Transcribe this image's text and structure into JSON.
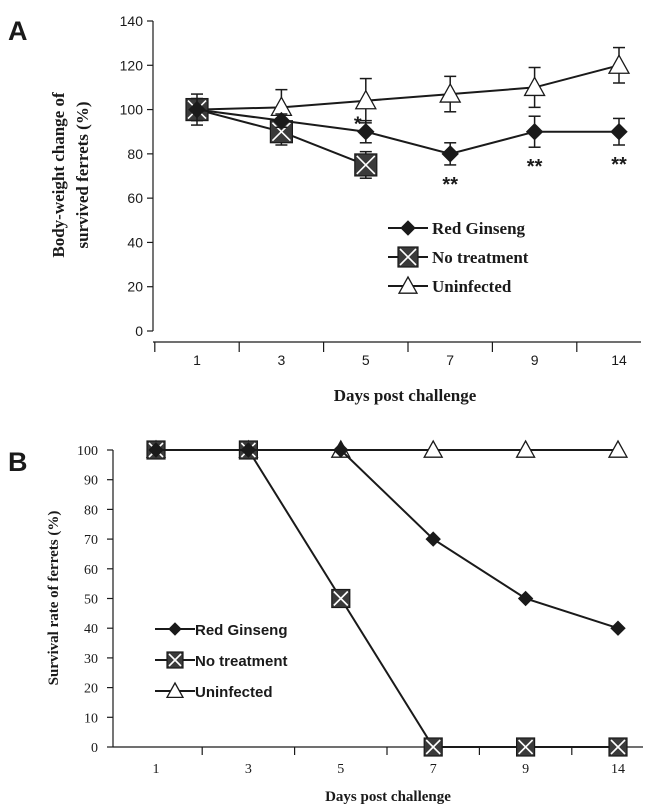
{
  "chart_data": [
    {
      "panel": "A",
      "type": "line",
      "xlabel": "Days post challenge",
      "ylabel_lines": [
        "Body-weight change of",
        "survived ferrets (%)"
      ],
      "categories": [
        "1",
        "3",
        "5",
        "7",
        "9",
        "14"
      ],
      "ylim": [
        0,
        140
      ],
      "yticks": [
        0,
        20,
        40,
        60,
        80,
        100,
        120,
        140
      ],
      "grid": false,
      "legend_position": "lower-right",
      "series": [
        {
          "name": "Red Ginseng",
          "marker": "diamond",
          "values": [
            100,
            95,
            90,
            80,
            90,
            90
          ],
          "errors": [
            5,
            3,
            5,
            5,
            7,
            6
          ]
        },
        {
          "name": "No treatment",
          "marker": "boxed-x",
          "values": [
            100,
            90,
            75,
            null,
            null,
            null
          ],
          "errors": [
            7,
            6,
            6,
            null,
            null,
            null
          ]
        },
        {
          "name": "Uninfected",
          "marker": "open-triangle",
          "values": [
            100,
            101,
            104,
            107,
            110,
            120
          ],
          "errors": [
            4,
            8,
            10,
            8,
            9,
            8
          ]
        }
      ],
      "annotations": [
        {
          "text": "*",
          "category": "5",
          "position": "above"
        },
        {
          "text": "**",
          "category": "7",
          "position": "below"
        },
        {
          "text": "**",
          "category": "9",
          "position": "below"
        },
        {
          "text": "**",
          "category": "14",
          "position": "below"
        }
      ]
    },
    {
      "panel": "B",
      "type": "line",
      "xlabel": "Days post challenge",
      "ylabel": "Survival rate of ferrets (%)",
      "categories": [
        "1",
        "3",
        "5",
        "7",
        "9",
        "14"
      ],
      "ylim": [
        0,
        100
      ],
      "yticks": [
        0,
        10,
        20,
        30,
        40,
        50,
        60,
        70,
        80,
        90,
        100
      ],
      "grid": false,
      "legend_position": "lower-left",
      "series": [
        {
          "name": "Red Ginseng",
          "marker": "diamond",
          "values": [
            100,
            100,
            100,
            70,
            50,
            40
          ]
        },
        {
          "name": "No treatment",
          "marker": "boxed-x",
          "values": [
            100,
            100,
            50,
            0,
            0,
            0
          ]
        },
        {
          "name": "Uninfected",
          "marker": "open-triangle",
          "values": [
            100,
            100,
            100,
            100,
            100,
            100
          ]
        }
      ]
    }
  ]
}
